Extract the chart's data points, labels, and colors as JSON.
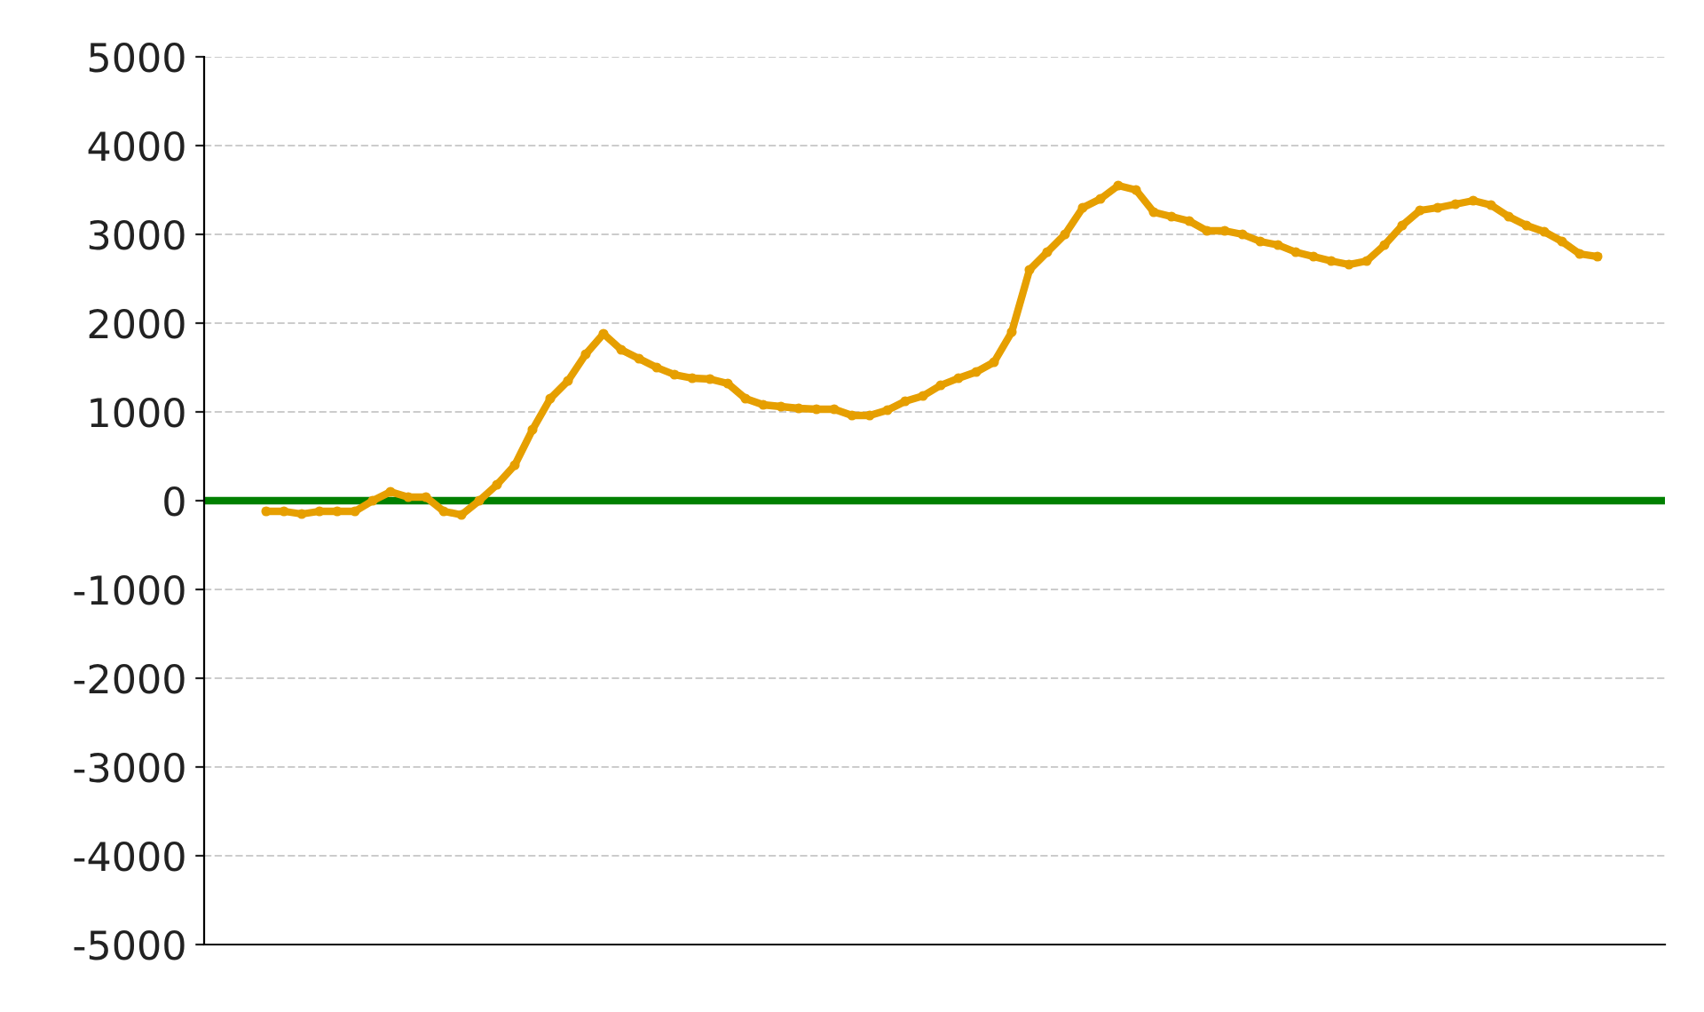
{
  "chart_data": {
    "type": "line",
    "categories": [
      null,
      null,
      null,
      null,
      null,
      null,
      null,
      null,
      null,
      null,
      null,
      null,
      null,
      null,
      null,
      null,
      null,
      null,
      null,
      null,
      null,
      null,
      null,
      null,
      null,
      null,
      null,
      null,
      null,
      null,
      null,
      null,
      null,
      null,
      null,
      null,
      null,
      null,
      null,
      null,
      null,
      null,
      null,
      null,
      null,
      null,
      null,
      null,
      null,
      null,
      null,
      null,
      null,
      null,
      null,
      null,
      null,
      null,
      null,
      null,
      null,
      null,
      null,
      null,
      null,
      null,
      null,
      null,
      null,
      null,
      null,
      null,
      null,
      null,
      null,
      null
    ],
    "series": [
      {
        "color": "#e69f00",
        "values": [
          -120,
          -120,
          -150,
          -120,
          -120,
          -120,
          0,
          100,
          40,
          40,
          -120,
          -160,
          0,
          180,
          400,
          800,
          1150,
          1350,
          1650,
          1880,
          1700,
          1600,
          1500,
          1420,
          1380,
          1370,
          1320,
          1150,
          1080,
          1060,
          1040,
          1030,
          1030,
          960,
          960,
          1020,
          1120,
          1180,
          1300,
          1380,
          1450,
          1560,
          1900,
          2600,
          2800,
          3000,
          3300,
          3400,
          3550,
          3500,
          3250,
          3200,
          3150,
          3040,
          3040,
          3000,
          2920,
          2880,
          2800,
          2750,
          2700,
          2660,
          2700,
          2880,
          3100,
          3270,
          3300,
          3340,
          3380,
          3330,
          3200,
          3100,
          3030,
          2920,
          2780,
          2750
        ]
      }
    ],
    "ylim": [
      -5000,
      5000
    ],
    "yticks": [
      -5000,
      -4000,
      -3000,
      -2000,
      -1000,
      0,
      1000,
      2000,
      3000,
      4000,
      5000
    ],
    "grid": "y",
    "marker": "circle",
    "line_style": "solid",
    "legend": false,
    "ref_lines": [
      {
        "axis": "y",
        "value": 0,
        "color": "#008000"
      }
    ]
  }
}
